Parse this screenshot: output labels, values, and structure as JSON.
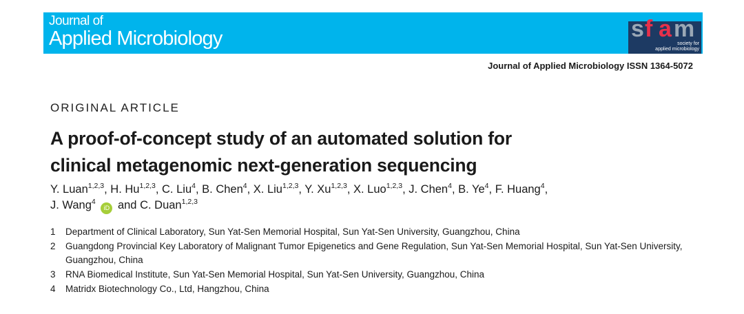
{
  "journal_banner": {
    "line1": "Journal of",
    "line2": "Applied Microbiology",
    "brand_color": "#00b4ec",
    "logo": {
      "text": "sfam",
      "tagline1": "society for",
      "tagline2": "applied microbiology"
    }
  },
  "issn_line": "Journal of Applied Microbiology ISSN 1364-5072",
  "article_type": "ORIGINAL ARTICLE",
  "title_lines": [
    "A proof-of-concept study of an automated solution for",
    "clinical metagenomic next-generation sequencing"
  ],
  "authors": [
    {
      "name": "Y. Luan",
      "aff": "1,2,3"
    },
    {
      "name": "H. Hu",
      "aff": "1,2,3"
    },
    {
      "name": "C. Liu",
      "aff": "4"
    },
    {
      "name": "B. Chen",
      "aff": "4"
    },
    {
      "name": "X. Liu",
      "aff": "1,2,3"
    },
    {
      "name": "Y. Xu",
      "aff": "1,2,3"
    },
    {
      "name": "X. Luo",
      "aff": "1,2,3"
    },
    {
      "name": "J. Chen",
      "aff": "4"
    },
    {
      "name": "B. Ye",
      "aff": "4"
    },
    {
      "name": "F. Huang",
      "aff": "4"
    },
    {
      "name": "J. Wang",
      "aff": "4",
      "orcid": "iD"
    },
    {
      "name": "C. Duan",
      "aff": "1,2,3"
    }
  ],
  "and_label": "and",
  "affiliations": [
    {
      "n": "1",
      "text": "Department of Clinical Laboratory, Sun Yat-Sen Memorial Hospital, Sun Yat-Sen University, Guangzhou, China"
    },
    {
      "n": "2",
      "text": "Guangdong Provincial Key Laboratory of Malignant Tumor Epigenetics and Gene Regulation, Sun Yat-Sen Memorial Hospital, Sun Yat-Sen University, Guangzhou, China"
    },
    {
      "n": "3",
      "text": "RNA Biomedical Institute, Sun Yat-Sen Memorial Hospital, Sun Yat-Sen University, Guangzhou, China"
    },
    {
      "n": "4",
      "text": "Matridx Biotechnology Co., Ltd, Hangzhou, China"
    }
  ]
}
